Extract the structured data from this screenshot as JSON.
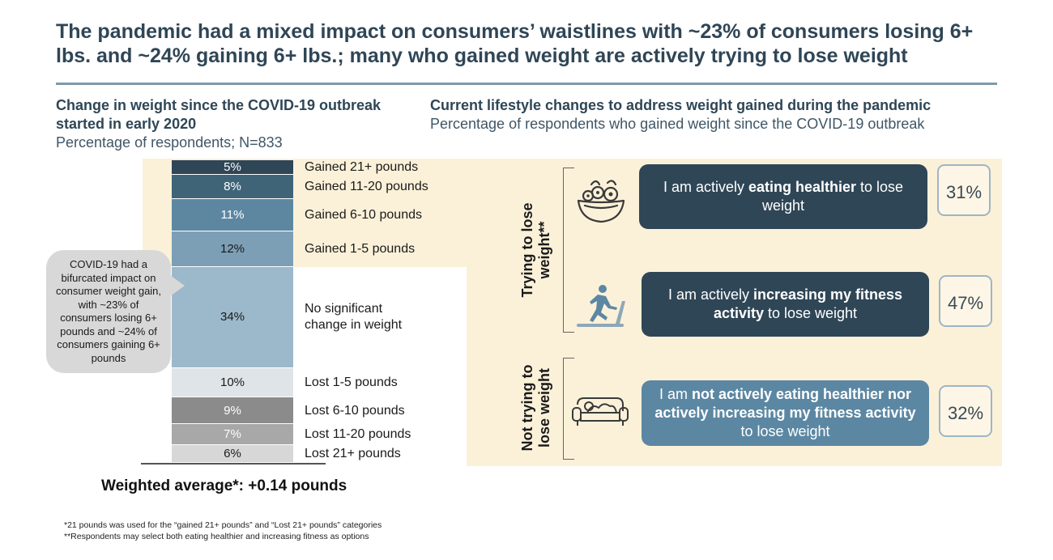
{
  "title": "The pandemic had a mixed impact on consumers’ waistlines with ~23% of consumers losing 6+ lbs. and ~24% gaining 6+ lbs.; many who gained weight are actively trying to lose weight",
  "left": {
    "heading": "Change in weight since the COVID-19 outbreak started in early 2020",
    "subheading": "Percentage of respondents; N=833"
  },
  "right": {
    "heading": "Current lifestyle changes to address weight gained during the pandemic",
    "subheading": "Percentage of respondents who gained weight since the COVID-19 outbreak"
  },
  "chart_data": [
    {
      "type": "bar",
      "orientation": "stacked-vertical",
      "title": "Change in weight since the COVID-19 outbreak started in early 2020",
      "subtitle": "Percentage of respondents; N=833",
      "categories": [
        "Gained 21+ pounds",
        "Gained 11-20 pounds",
        "Gained 6-10 pounds",
        "Gained 1-5 pounds",
        "No significant change in weight",
        "Lost 1-5 pounds",
        "Lost 6-10 pounds",
        "Lost 11-20 pounds",
        "Lost 21+ pounds"
      ],
      "values": [
        5,
        8,
        11,
        12,
        34,
        10,
        9,
        7,
        6
      ],
      "value_labels": [
        "5%",
        "8%",
        "11%",
        "12%",
        "34%",
        "10%",
        "9%",
        "7%",
        "6%"
      ],
      "colors": [
        "#2f4656",
        "#3f6478",
        "#5d87a1",
        "#7c9fb6",
        "#9cb8cb",
        "#dfe4e8",
        "#8b8b8b",
        "#a8a8a8",
        "#d7d7d7"
      ],
      "text_colors": [
        "#ffffff",
        "#ffffff",
        "#ffffff",
        "#1a1a1a",
        "#1a1a1a",
        "#1a1a1a",
        "#ffffff",
        "#ffffff",
        "#1a1a1a"
      ],
      "unit": "%"
    },
    {
      "type": "table",
      "title": "Current lifestyle changes to address weight gained during the pandemic",
      "rows": [
        {
          "group": "Trying to lose weight**",
          "statement": "I am actively eating healthier to lose weight",
          "value": 31
        },
        {
          "group": "Trying to lose weight**",
          "statement": "I am actively increasing my fitness activity to lose weight",
          "value": 47
        },
        {
          "group": "Not trying to lose weight",
          "statement": "I am not actively eating healthier nor actively increasing my fitness activity to lose weight",
          "value": 32
        }
      ]
    }
  ],
  "callout": "COVID-19 had a bifurcated impact on consumer weight gain, with ~23% of consumers losing 6+ pounds and ~24% of consumers gaining 6+ pounds",
  "weighted_average": "Weighted average*: +0.14 pounds",
  "groups": {
    "trying": "Trying to lose weight**",
    "not_trying": "Not trying to lose weight"
  },
  "statements": [
    {
      "pre": "I am actively ",
      "bold": "eating healthier",
      "post": " to lose weight",
      "pct": "31%",
      "color": "#2f4656",
      "icon": "salad-bowl-icon"
    },
    {
      "pre": "I am actively ",
      "bold": "increasing my fitness activity",
      "post": " to lose weight",
      "pct": "47%",
      "color": "#2f4656",
      "icon": "treadmill-runner-icon"
    },
    {
      "pre": "I am ",
      "bold": "not actively eating healthier nor actively increasing my fitness activity",
      "post": " to lose weight",
      "pct": "32%",
      "color": "#5b87a3",
      "icon": "couch-icon"
    }
  ],
  "footnotes": [
    "*21 pounds was used for the “gained 21+ pounds” and “Lost 21+ pounds” categories",
    "**Respondents may select both eating healthier and increasing fitness as options"
  ]
}
